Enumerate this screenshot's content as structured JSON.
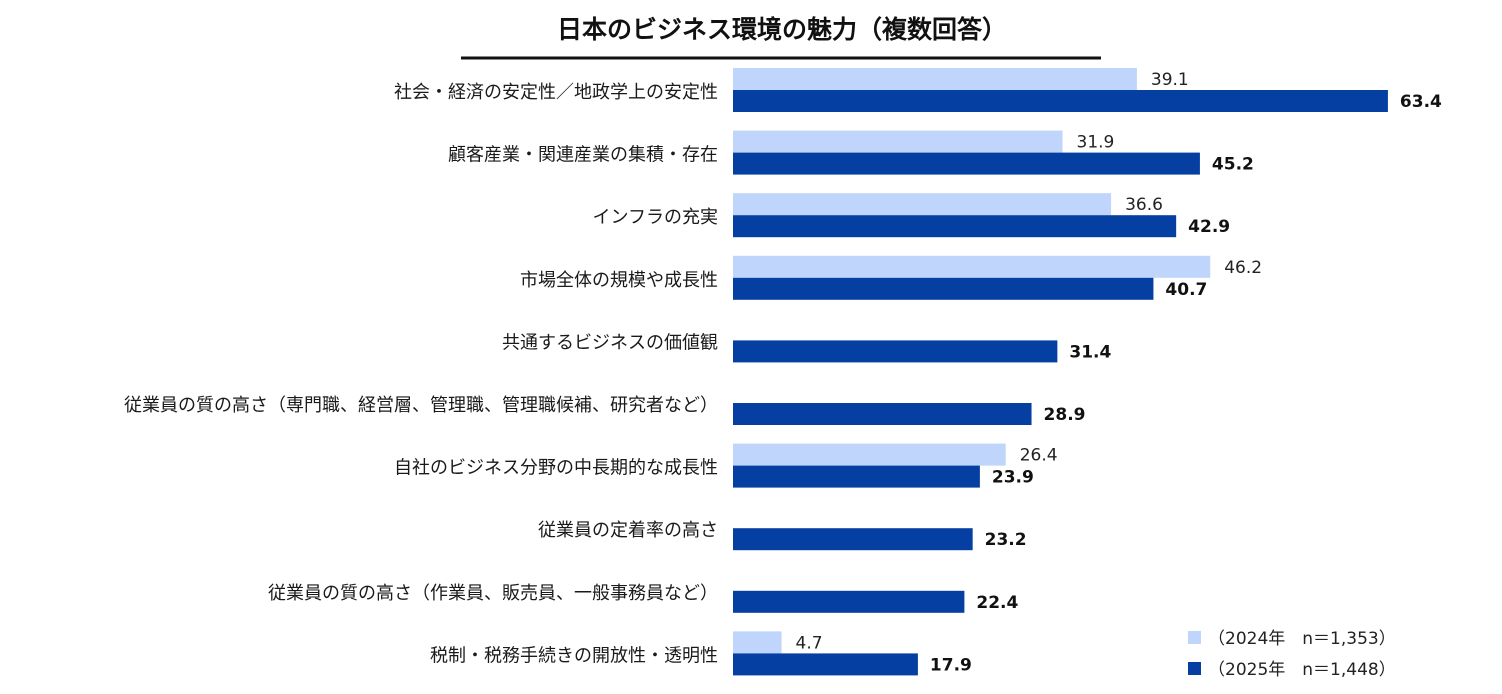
{
  "colors": {
    "y2024": "#bfd5fb",
    "y2025": "#063fa2",
    "underline": "#111111"
  },
  "chart_data": {
    "type": "bar",
    "orientation": "horizontal",
    "title": "日本のビジネス環境の魅力（複数回答）",
    "xlim": [
      0,
      70
    ],
    "grid": false,
    "legend_position": "bottom-right",
    "categories": [
      "社会・経済の安定性／地政学上の安定性",
      "顧客産業・関連産業の集積・存在",
      "インフラの充実",
      "市場全体の規模や成長性",
      "共通するビジネスの価値観",
      "従業員の質の高さ（専門職、経営層、管理職、管理職候補、研究者など）",
      "自社のビジネス分野の中長期的な成長性",
      "従業員の定着率の高さ",
      "従業員の質の高さ（作業員、販売員、一般事務員など）",
      "税制・税務手続きの開放性・透明性"
    ],
    "series": [
      {
        "name": "（2024年　n＝1,353）",
        "values": [
          39.1,
          31.9,
          36.6,
          46.2,
          null,
          null,
          26.4,
          null,
          null,
          4.7
        ]
      },
      {
        "name": "（2025年　n＝1,448）",
        "values": [
          63.4,
          45.2,
          42.9,
          40.7,
          31.4,
          28.9,
          23.9,
          23.2,
          22.4,
          17.9
        ]
      }
    ]
  }
}
